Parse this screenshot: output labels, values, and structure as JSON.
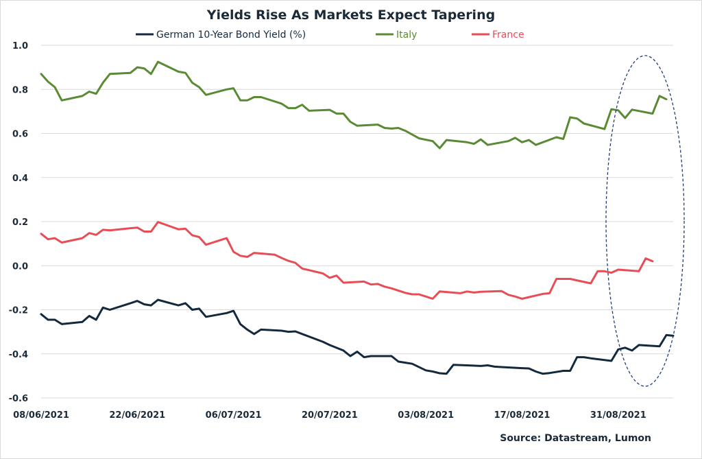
{
  "chart_data": {
    "type": "line",
    "title": "Yields Rise As Markets Expect Tapering",
    "source": "Source: Datastream, Lumon",
    "xlabel": "",
    "ylabel": "",
    "ylim": [
      -0.6,
      1.0
    ],
    "yticks": [
      "1.0",
      "0.8",
      "0.6",
      "0.4",
      "0.2",
      "0.0",
      "-0.2",
      "-0.4",
      "-0.6"
    ],
    "xticks": [
      "08/06/2021",
      "22/06/2021",
      "06/07/2021",
      "20/07/2021",
      "03/08/2021",
      "17/08/2021",
      "31/08/2021"
    ],
    "xrange": [
      "08/06/2021",
      "08/09/2021"
    ],
    "grid": "horizontal",
    "legend_position": "top",
    "annotation": "dashed ellipse highlighting late Aug - early Sep 2021",
    "colors": {
      "german": "#13293d",
      "italy": "#5a8a34",
      "france": "#e84c55",
      "axis_text": "#1b2a38"
    },
    "series": [
      {
        "name": "German 10-Year Bond Yield (%)",
        "key": "german",
        "points": [
          [
            "08/06/2021",
            -0.22
          ],
          [
            "09/06/2021",
            -0.245
          ],
          [
            "10/06/2021",
            -0.245
          ],
          [
            "11/06/2021",
            -0.265
          ],
          [
            "14/06/2021",
            -0.255
          ],
          [
            "15/06/2021",
            -0.228
          ],
          [
            "16/06/2021",
            -0.245
          ],
          [
            "17/06/2021",
            -0.19
          ],
          [
            "18/06/2021",
            -0.2
          ],
          [
            "21/06/2021",
            -0.17
          ],
          [
            "22/06/2021",
            -0.16
          ],
          [
            "23/06/2021",
            -0.175
          ],
          [
            "24/06/2021",
            -0.18
          ],
          [
            "25/06/2021",
            -0.155
          ],
          [
            "28/06/2021",
            -0.18
          ],
          [
            "29/06/2021",
            -0.17
          ],
          [
            "30/06/2021",
            -0.2
          ],
          [
            "01/07/2021",
            -0.195
          ],
          [
            "02/07/2021",
            -0.232
          ],
          [
            "05/07/2021",
            -0.215
          ],
          [
            "06/07/2021",
            -0.205
          ],
          [
            "07/07/2021",
            -0.265
          ],
          [
            "08/07/2021",
            -0.29
          ],
          [
            "09/07/2021",
            -0.31
          ],
          [
            "10/07/2021",
            -0.29
          ],
          [
            "13/07/2021",
            -0.295
          ],
          [
            "14/07/2021",
            -0.3
          ],
          [
            "15/07/2021",
            -0.298
          ],
          [
            "16/07/2021",
            -0.31
          ],
          [
            "19/07/2021",
            -0.345
          ],
          [
            "20/07/2021",
            -0.36
          ],
          [
            "22/07/2021",
            -0.385
          ],
          [
            "23/07/2021",
            -0.41
          ],
          [
            "24/07/2021",
            -0.39
          ],
          [
            "25/07/2021",
            -0.415
          ],
          [
            "26/07/2021",
            -0.41
          ],
          [
            "29/07/2021",
            -0.41
          ],
          [
            "30/07/2021",
            -0.435
          ],
          [
            "31/07/2021",
            -0.44
          ],
          [
            "01/08/2021",
            -0.445
          ],
          [
            "03/08/2021",
            -0.475
          ],
          [
            "04/08/2021",
            -0.48
          ],
          [
            "05/08/2021",
            -0.488
          ],
          [
            "06/08/2021",
            -0.49
          ],
          [
            "07/08/2021",
            -0.45
          ],
          [
            "09/08/2021",
            -0.452
          ],
          [
            "11/08/2021",
            -0.455
          ],
          [
            "12/08/2021",
            -0.452
          ],
          [
            "13/08/2021",
            -0.458
          ],
          [
            "14/08/2021",
            -0.46
          ],
          [
            "17/08/2021",
            -0.465
          ],
          [
            "18/08/2021",
            -0.466
          ],
          [
            "19/08/2021",
            -0.48
          ],
          [
            "20/08/2021",
            -0.49
          ],
          [
            "21/08/2021",
            -0.487
          ],
          [
            "23/08/2021",
            -0.477
          ],
          [
            "24/08/2021",
            -0.477
          ],
          [
            "25/08/2021",
            -0.415
          ],
          [
            "26/08/2021",
            -0.415
          ],
          [
            "27/08/2021",
            -0.42
          ],
          [
            "30/08/2021",
            -0.432
          ],
          [
            "31/08/2021",
            -0.38
          ],
          [
            "01/09/2021",
            -0.372
          ],
          [
            "02/09/2021",
            -0.385
          ],
          [
            "03/09/2021",
            -0.36
          ],
          [
            "06/09/2021",
            -0.366
          ],
          [
            "07/09/2021",
            -0.315
          ],
          [
            "08/09/2021",
            -0.318
          ]
        ]
      },
      {
        "name": "Italy",
        "key": "italy",
        "points": [
          [
            "08/06/2021",
            0.87
          ],
          [
            "09/06/2021",
            0.835
          ],
          [
            "10/06/2021",
            0.81
          ],
          [
            "11/06/2021",
            0.75
          ],
          [
            "14/06/2021",
            0.77
          ],
          [
            "15/06/2021",
            0.79
          ],
          [
            "16/06/2021",
            0.78
          ],
          [
            "17/06/2021",
            0.83
          ],
          [
            "18/06/2021",
            0.87
          ],
          [
            "21/06/2021",
            0.875
          ],
          [
            "22/06/2021",
            0.9
          ],
          [
            "23/06/2021",
            0.895
          ],
          [
            "24/06/2021",
            0.87
          ],
          [
            "25/06/2021",
            0.925
          ],
          [
            "28/06/2021",
            0.88
          ],
          [
            "29/06/2021",
            0.875
          ],
          [
            "30/06/2021",
            0.83
          ],
          [
            "01/07/2021",
            0.81
          ],
          [
            "02/07/2021",
            0.775
          ],
          [
            "05/07/2021",
            0.8
          ],
          [
            "06/07/2021",
            0.805
          ],
          [
            "07/07/2021",
            0.75
          ],
          [
            "08/07/2021",
            0.75
          ],
          [
            "09/07/2021",
            0.765
          ],
          [
            "10/07/2021",
            0.765
          ],
          [
            "13/07/2021",
            0.735
          ],
          [
            "14/07/2021",
            0.715
          ],
          [
            "15/07/2021",
            0.715
          ],
          [
            "16/07/2021",
            0.73
          ],
          [
            "17/07/2021",
            0.703
          ],
          [
            "20/07/2021",
            0.707
          ],
          [
            "21/07/2021",
            0.69
          ],
          [
            "22/07/2021",
            0.69
          ],
          [
            "23/07/2021",
            0.653
          ],
          [
            "24/07/2021",
            0.635
          ],
          [
            "27/07/2021",
            0.64
          ],
          [
            "28/07/2021",
            0.625
          ],
          [
            "29/07/2021",
            0.622
          ],
          [
            "30/07/2021",
            0.625
          ],
          [
            "31/07/2021",
            0.612
          ],
          [
            "02/08/2021",
            0.578
          ],
          [
            "04/08/2021",
            0.565
          ],
          [
            "05/08/2021",
            0.533
          ],
          [
            "06/08/2021",
            0.57
          ],
          [
            "09/08/2021",
            0.56
          ],
          [
            "10/08/2021",
            0.553
          ],
          [
            "11/08/2021",
            0.573
          ],
          [
            "12/08/2021",
            0.548
          ],
          [
            "15/08/2021",
            0.565
          ],
          [
            "16/08/2021",
            0.58
          ],
          [
            "17/08/2021",
            0.56
          ],
          [
            "18/08/2021",
            0.57
          ],
          [
            "19/08/2021",
            0.548
          ],
          [
            "22/08/2021",
            0.583
          ],
          [
            "23/08/2021",
            0.575
          ],
          [
            "24/08/2021",
            0.673
          ],
          [
            "25/08/2021",
            0.668
          ],
          [
            "26/08/2021",
            0.645
          ],
          [
            "29/08/2021",
            0.62
          ],
          [
            "30/08/2021",
            0.71
          ],
          [
            "31/08/2021",
            0.705
          ],
          [
            "01/09/2021",
            0.67
          ],
          [
            "02/09/2021",
            0.708
          ],
          [
            "05/09/2021",
            0.69
          ],
          [
            "06/09/2021",
            0.77
          ],
          [
            "07/09/2021",
            0.755
          ]
        ]
      },
      {
        "name": "France",
        "key": "france",
        "points": [
          [
            "08/06/2021",
            0.145
          ],
          [
            "09/06/2021",
            0.12
          ],
          [
            "10/06/2021",
            0.125
          ],
          [
            "11/06/2021",
            0.105
          ],
          [
            "14/06/2021",
            0.125
          ],
          [
            "15/06/2021",
            0.148
          ],
          [
            "16/06/2021",
            0.14
          ],
          [
            "17/06/2021",
            0.163
          ],
          [
            "18/06/2021",
            0.16
          ],
          [
            "21/06/2021",
            0.17
          ],
          [
            "22/06/2021",
            0.173
          ],
          [
            "23/06/2021",
            0.155
          ],
          [
            "24/06/2021",
            0.155
          ],
          [
            "25/06/2021",
            0.198
          ],
          [
            "28/06/2021",
            0.165
          ],
          [
            "29/06/2021",
            0.168
          ],
          [
            "30/06/2021",
            0.138
          ],
          [
            "01/07/2021",
            0.13
          ],
          [
            "02/07/2021",
            0.095
          ],
          [
            "05/07/2021",
            0.125
          ],
          [
            "06/07/2021",
            0.063
          ],
          [
            "07/07/2021",
            0.045
          ],
          [
            "08/07/2021",
            0.04
          ],
          [
            "09/07/2021",
            0.058
          ],
          [
            "12/07/2021",
            0.05
          ],
          [
            "13/07/2021",
            0.035
          ],
          [
            "14/07/2021",
            0.022
          ],
          [
            "15/07/2021",
            0.013
          ],
          [
            "16/07/2021",
            -0.013
          ],
          [
            "19/07/2021",
            -0.035
          ],
          [
            "20/07/2021",
            -0.055
          ],
          [
            "21/07/2021",
            -0.045
          ],
          [
            "22/07/2021",
            -0.077
          ],
          [
            "25/07/2021",
            -0.072
          ],
          [
            "26/07/2021",
            -0.085
          ],
          [
            "27/07/2021",
            -0.083
          ],
          [
            "28/07/2021",
            -0.095
          ],
          [
            "29/07/2021",
            -0.103
          ],
          [
            "31/07/2021",
            -0.123
          ],
          [
            "01/08/2021",
            -0.13
          ],
          [
            "02/08/2021",
            -0.13
          ],
          [
            "03/08/2021",
            -0.14
          ],
          [
            "04/08/2021",
            -0.15
          ],
          [
            "05/08/2021",
            -0.117
          ],
          [
            "08/08/2021",
            -0.125
          ],
          [
            "09/08/2021",
            -0.117
          ],
          [
            "10/08/2021",
            -0.122
          ],
          [
            "11/08/2021",
            -0.118
          ],
          [
            "14/08/2021",
            -0.115
          ],
          [
            "15/08/2021",
            -0.132
          ],
          [
            "16/08/2021",
            -0.14
          ],
          [
            "17/08/2021",
            -0.15
          ],
          [
            "20/08/2021",
            -0.128
          ],
          [
            "21/08/2021",
            -0.125
          ],
          [
            "22/08/2021",
            -0.06
          ],
          [
            "24/08/2021",
            -0.06
          ],
          [
            "27/08/2021",
            -0.08
          ],
          [
            "28/08/2021",
            -0.025
          ],
          [
            "29/08/2021",
            -0.025
          ],
          [
            "30/08/2021",
            -0.032
          ],
          [
            "31/08/2021",
            -0.018
          ],
          [
            "03/09/2021",
            -0.025
          ],
          [
            "04/09/2021",
            0.033
          ],
          [
            "05/09/2021",
            0.02
          ]
        ]
      }
    ]
  }
}
